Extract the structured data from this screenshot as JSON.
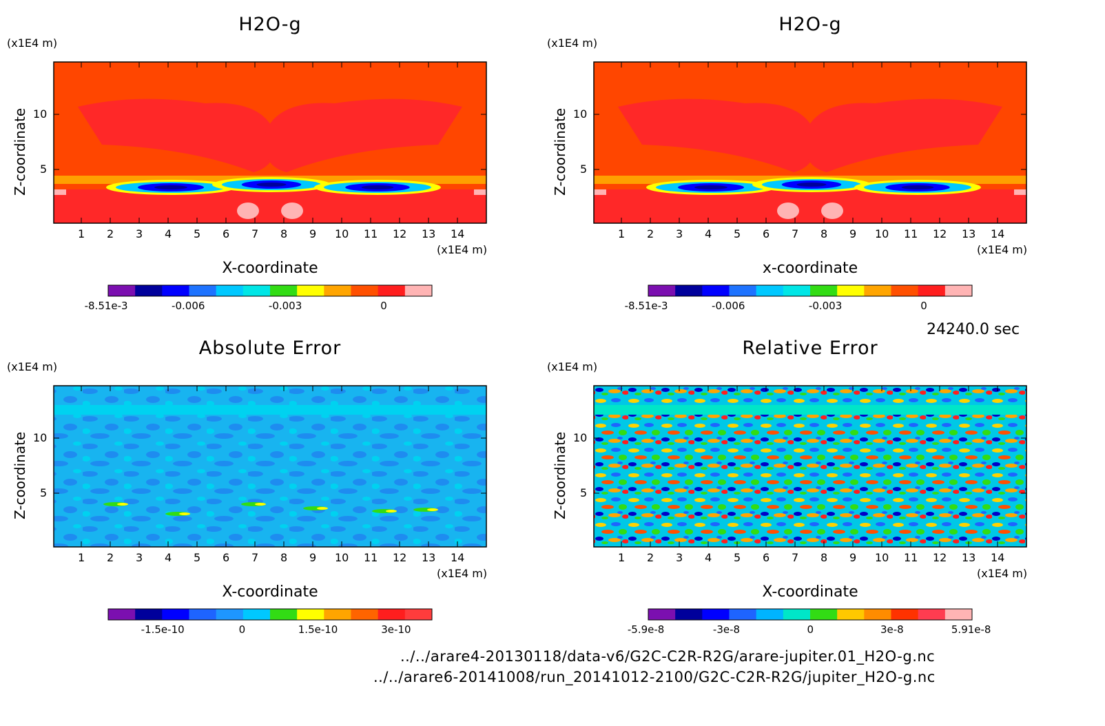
{
  "panels": [
    {
      "title": "H2O-g",
      "xlabel": "X-coordinate",
      "ylabel": "Z-coordinate",
      "yunit": "(x1E4 m)",
      "xunit": "(x1E4 m)",
      "x_ticks": [
        "1",
        "2",
        "3",
        "4",
        "5",
        "6",
        "7",
        "8",
        "9",
        "10",
        "11",
        "12",
        "13",
        "14"
      ],
      "y_ticks": [
        "5",
        "10"
      ],
      "colorbar_colors": [
        "#7b0fb0",
        "#00009b",
        "#0000ff",
        "#1e73ff",
        "#00c8ff",
        "#00e6e6",
        "#32dc14",
        "#ffff00",
        "#ffa500",
        "#ff5000",
        "#ff1e1e",
        "#ffb4b4"
      ],
      "colorbar_ticks": [
        "-8.51e-3",
        "-0.006",
        "-0.003",
        "0"
      ]
    },
    {
      "title": "H2O-g",
      "xlabel": "x-coordinate",
      "ylabel": "Z-coordinate",
      "yunit": "(x1E4 m)",
      "xunit": "(x1E4 m)",
      "x_ticks": [
        "1",
        "2",
        "3",
        "4",
        "5",
        "6",
        "7",
        "8",
        "9",
        "10",
        "11",
        "12",
        "13",
        "14"
      ],
      "y_ticks": [
        "5",
        "10"
      ],
      "colorbar_colors": [
        "#7b0fb0",
        "#00009b",
        "#0000ff",
        "#1e73ff",
        "#00c8ff",
        "#00e6e6",
        "#32dc14",
        "#ffff00",
        "#ffa500",
        "#ff5000",
        "#ff1e1e",
        "#ffb4b4"
      ],
      "colorbar_ticks": [
        "-8.51e-3",
        "-0.006",
        "-0.003",
        "0"
      ]
    },
    {
      "title": "Absolute Error",
      "xlabel": "X-coordinate",
      "ylabel": "Z-coordinate",
      "yunit": "(x1E4 m)",
      "xunit": "(x1E4 m)",
      "x_ticks": [
        "1",
        "2",
        "3",
        "4",
        "5",
        "6",
        "7",
        "8",
        "9",
        "10",
        "11",
        "12",
        "13",
        "14"
      ],
      "y_ticks": [
        "5",
        "10"
      ],
      "colorbar_colors": [
        "#7b0fb0",
        "#00009b",
        "#0000ff",
        "#1e64ff",
        "#1e96ff",
        "#00c8ff",
        "#32dc14",
        "#ffff00",
        "#ffa500",
        "#ff6400",
        "#ff1e1e",
        "#ff3c3c"
      ],
      "colorbar_ticks": [
        "-1.5e-10",
        "0",
        "1.5e-10",
        "3e-10"
      ]
    },
    {
      "title": "Relative Error",
      "xlabel": "X-coordinate",
      "ylabel": "Z-coordinate",
      "yunit": "(x1E4 m)",
      "xunit": "(x1E4 m)",
      "x_ticks": [
        "1",
        "2",
        "3",
        "4",
        "5",
        "6",
        "7",
        "8",
        "9",
        "10",
        "11",
        "12",
        "13",
        "14"
      ],
      "y_ticks": [
        "5",
        "10"
      ],
      "colorbar_colors": [
        "#7b0fb0",
        "#00009b",
        "#0000ff",
        "#1e64ff",
        "#00b4ff",
        "#00e6c8",
        "#32dc14",
        "#ffc800",
        "#ff8c00",
        "#ff3200",
        "#ff3c50",
        "#ffb4b4"
      ],
      "colorbar_ticks": [
        "-5.9e-8",
        "-3e-8",
        "0",
        "3e-8",
        "5.91e-8"
      ]
    }
  ],
  "time_label": "24240.0 sec",
  "file_paths": [
    "../../arare4-20130118/data-v6/G2C-C2R-R2G/arare-jupiter.01_H2O-g.nc",
    "../../arare6-20141008/run_20141012-2100/G2C-C2R-R2G/jupiter_H2O-g.nc"
  ],
  "chart_data": [
    {
      "type": "heatmap",
      "title": "H2O-g",
      "xlabel": "X-coordinate",
      "ylabel": "Z-coordinate",
      "xlim": [
        0,
        15
      ],
      "ylim": [
        0,
        14.5
      ],
      "colorbar": {
        "min": -0.00851,
        "max": 0.0015,
        "ticks": [
          -0.00851,
          -0.006,
          -0.003,
          0
        ]
      }
    },
    {
      "type": "heatmap",
      "title": "H2O-g",
      "xlabel": "x-coordinate",
      "ylabel": "Z-coordinate",
      "xlim": [
        0,
        15
      ],
      "ylim": [
        0,
        14.5
      ],
      "colorbar": {
        "min": -0.00851,
        "max": 0.0015,
        "ticks": [
          -0.00851,
          -0.006,
          -0.003,
          0
        ]
      }
    },
    {
      "type": "heatmap",
      "title": "Absolute Error",
      "xlabel": "X-coordinate",
      "ylabel": "Z-coordinate",
      "xlim": [
        0,
        15
      ],
      "ylim": [
        0,
        14.5
      ],
      "colorbar": {
        "min": -2.6e-10,
        "max": 3.7e-10,
        "ticks": [
          -1.5e-10,
          0,
          1.5e-10,
          3e-10
        ]
      }
    },
    {
      "type": "heatmap",
      "title": "Relative Error",
      "xlabel": "X-coordinate",
      "ylabel": "Z-coordinate",
      "xlim": [
        0,
        15
      ],
      "ylim": [
        0,
        14.5
      ],
      "colorbar": {
        "min": -5.9e-08,
        "max": 5.91e-08,
        "ticks": [
          -5.9e-08,
          -3e-08,
          0,
          3e-08,
          5.91e-08
        ]
      }
    }
  ]
}
